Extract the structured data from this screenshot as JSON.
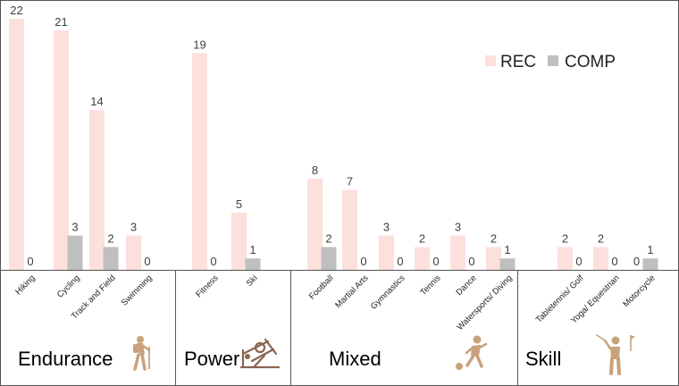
{
  "chart_data": {
    "type": "bar",
    "categories": [
      "Hiking",
      "Cycling",
      "Track and Field",
      "Swimming",
      "Fitness",
      "Ski",
      "Football",
      "Martial Arts",
      "Gymnastics",
      "Tennis",
      "Dance",
      "Watersports/ Diving",
      "Tabletennis/ Golf",
      "Yoga/ Equestrian",
      "Motorcycle"
    ],
    "series": [
      {
        "name": "REC",
        "color": "#fbe0dc",
        "values": [
          22,
          21,
          14,
          3,
          19,
          5,
          8,
          7,
          3,
          2,
          3,
          2,
          2,
          2,
          0
        ]
      },
      {
        "name": "COMP",
        "color": "#bfbfbf",
        "values": [
          0,
          3,
          2,
          0,
          0,
          1,
          2,
          0,
          0,
          0,
          0,
          1,
          0,
          0,
          1
        ]
      }
    ],
    "groups": [
      {
        "label": "Endurance",
        "icon": "hiker-icon",
        "categories": [
          "Hiking",
          "Cycling",
          "Track and Field",
          "Swimming"
        ]
      },
      {
        "label": "Power",
        "icon": "leg-press-icon",
        "categories": [
          "Fitness",
          "Ski"
        ]
      },
      {
        "label": "Mixed",
        "icon": "soccer-player-icon",
        "categories": [
          "Football",
          "Martial Arts",
          "Gymnastics",
          "Tennis",
          "Dance",
          "Watersports/ Diving"
        ]
      },
      {
        "label": "Skill",
        "icon": "golfer-icon",
        "categories": [
          "Tabletennis/ Golf",
          "Yoga/ Equestrian",
          "Motorcycle"
        ]
      }
    ],
    "ylim": [
      0,
      22
    ],
    "grid": false,
    "legend_position": "top-right",
    "icon_color": "#c8a27c"
  }
}
